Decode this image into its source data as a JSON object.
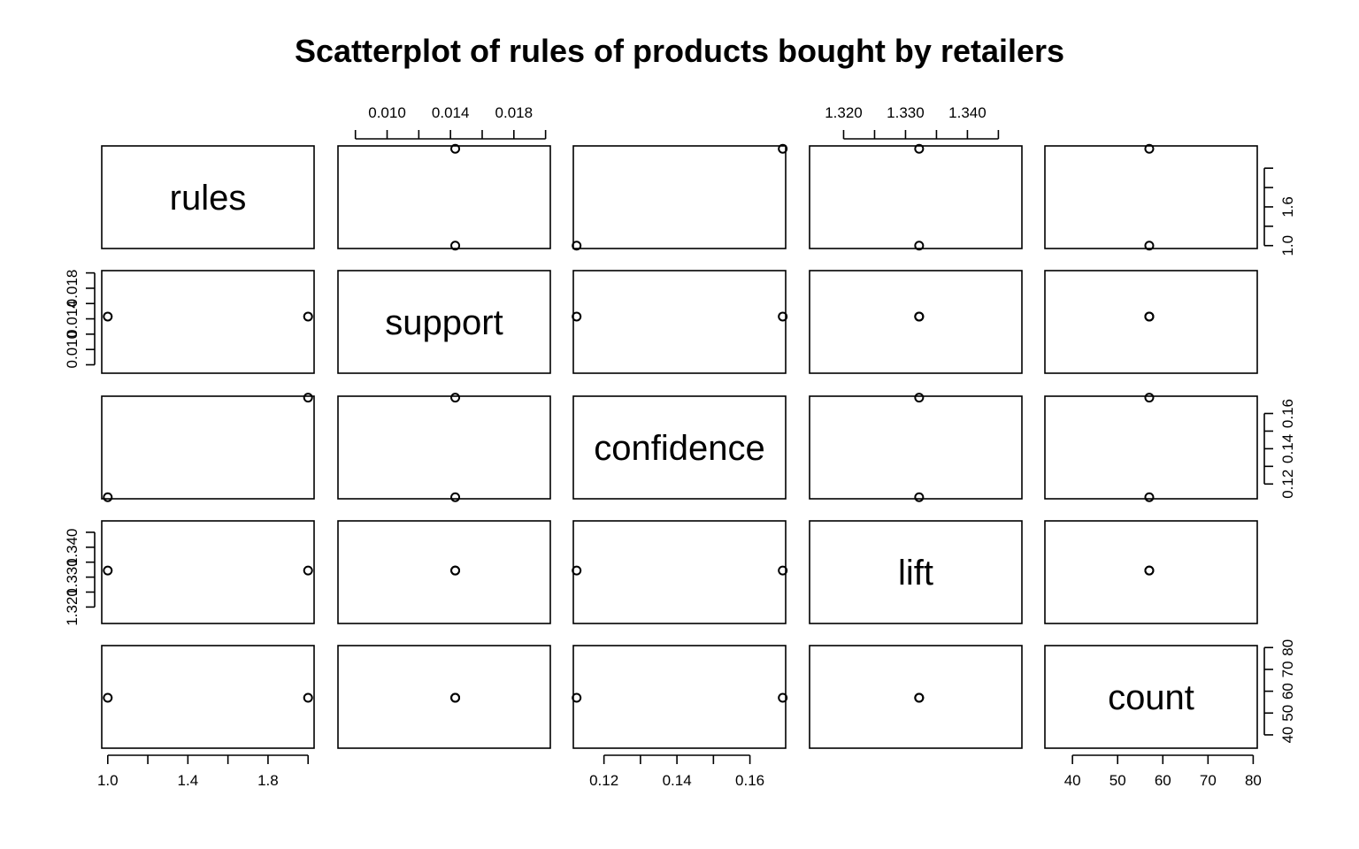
{
  "chart_data": {
    "type": "scatter-matrix",
    "title": "Scatterplot of rules of products bought by retailers",
    "variables": [
      {
        "name": "rules",
        "label": "rules",
        "range": [
          0.97,
          2.03
        ],
        "ticks": [
          1.0,
          1.2,
          1.4,
          1.6,
          1.8,
          2.0
        ],
        "tick_labels": [
          "1.0",
          "",
          "1.4",
          "",
          "1.8",
          ""
        ],
        "tick_labels_vertical": [
          "1.0",
          "",
          "1.6",
          ""
        ],
        "ticks_vertical": [
          1.0,
          1.2,
          1.4,
          1.6,
          1.8
        ]
      },
      {
        "name": "support",
        "label": "support",
        "range": [
          0.0069,
          0.0203
        ],
        "ticks": [
          0.008,
          0.01,
          0.012,
          0.014,
          0.016,
          0.018,
          0.02
        ],
        "tick_labels": [
          "",
          "0.010",
          "",
          "0.014",
          "",
          "0.018",
          ""
        ]
      },
      {
        "name": "confidence",
        "label": "confidence",
        "range": [
          0.1116,
          0.1698
        ],
        "ticks": [
          0.12,
          0.13,
          0.14,
          0.15,
          0.16,
          0.17
        ],
        "tick_labels": [
          "0.12",
          "",
          "0.14",
          "",
          "0.16",
          ""
        ]
      },
      {
        "name": "lift",
        "label": "lift",
        "range": [
          1.3145,
          1.3488
        ],
        "ticks": [
          1.32,
          1.325,
          1.33,
          1.335,
          1.34,
          1.345
        ],
        "tick_labels": [
          "1.320",
          "",
          "1.330",
          "",
          "1.340",
          ""
        ]
      },
      {
        "name": "count",
        "label": "count",
        "range": [
          33.9,
          80.9
        ],
        "ticks": [
          40,
          50,
          60,
          70,
          80
        ],
        "tick_labels": [
          "40",
          "50",
          "60",
          "70",
          "80"
        ]
      }
    ],
    "axis_layout": {
      "top": {
        "variables": [
          "support",
          "lift"
        ]
      },
      "bottom": {
        "variables": [
          "rules",
          "confidence",
          "count"
        ]
      },
      "left": {
        "variables": [
          "support",
          "lift"
        ]
      },
      "right": {
        "variables": [
          "rules",
          "confidence",
          "count"
        ]
      }
    },
    "points": [
      {
        "rules": 1,
        "support": 0.0143,
        "confidence": 0.1125,
        "lift": 1.3322,
        "count": 57
      },
      {
        "rules": 2,
        "support": 0.0143,
        "confidence": 0.169,
        "lift": 1.3322,
        "count": 57
      }
    ]
  }
}
